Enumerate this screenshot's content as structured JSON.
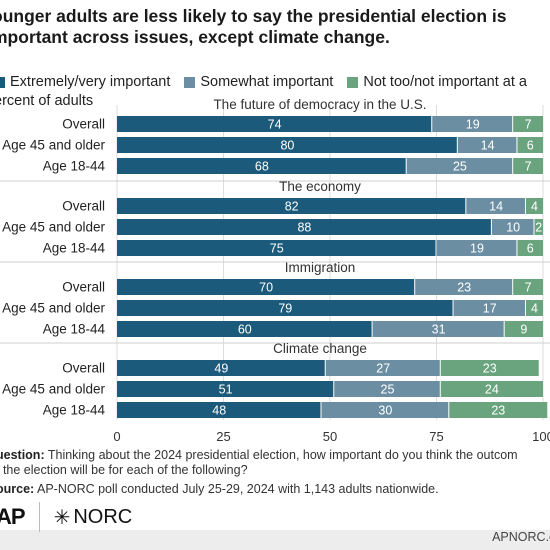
{
  "title_line1": "ounger adults are less likely to say the presidential election is",
  "title_line2": "mportant across issues, except climate change.",
  "subtitle": "ercent of adults",
  "colors": {
    "dark": "#1b5a7a",
    "mid": "#6c8ea3",
    "light": "#6aa47e"
  },
  "chart_data": {
    "type": "bar",
    "orientation": "horizontal-stacked",
    "xlim": [
      0,
      100
    ],
    "x_ticks": [
      "0",
      "25",
      "50",
      "75",
      "100"
    ],
    "legend": [
      "Extremely/very important",
      "Somewhat important",
      "Not too/not important at a"
    ],
    "groups": [
      {
        "title": "The future of democracy in the U.S.",
        "rows": [
          {
            "label": "Overall",
            "values": [
              74,
              19,
              7
            ]
          },
          {
            "label": "Age 45 and older",
            "values": [
              80,
              14,
              6
            ]
          },
          {
            "label": "Age 18-44",
            "values": [
              68,
              25,
              7
            ]
          }
        ]
      },
      {
        "title": "The economy",
        "rows": [
          {
            "label": "Overall",
            "values": [
              82,
              14,
              4
            ]
          },
          {
            "label": "Age 45 and older",
            "values": [
              88,
              10,
              2
            ]
          },
          {
            "label": "Age 18-44",
            "values": [
              75,
              19,
              6
            ]
          }
        ]
      },
      {
        "title": "Immigration",
        "rows": [
          {
            "label": "Overall",
            "values": [
              70,
              23,
              7
            ]
          },
          {
            "label": "Age 45 and older",
            "values": [
              79,
              17,
              4
            ]
          },
          {
            "label": "Age 18-44",
            "values": [
              60,
              31,
              9
            ]
          }
        ]
      },
      {
        "title": "Climate change",
        "rows": [
          {
            "label": "Overall",
            "values": [
              49,
              27,
              23
            ]
          },
          {
            "label": "Age 45 and older",
            "values": [
              51,
              25,
              24
            ]
          },
          {
            "label": "Age 18-44",
            "values": [
              48,
              30,
              23
            ]
          }
        ]
      }
    ]
  },
  "note_label": "uestion:",
  "note_line1": " Thinking about the 2024 presidential election, how important do you think the outcom",
  "note_line2": "f the election will be for each of the following?",
  "source_label": "ource:",
  "source_text": " AP-NORC poll conducted July 25-29, 2024 with 1,143 adults nationwide.",
  "logo_ap": "AP",
  "logo_norc": "NORC",
  "site": "APNORC.o"
}
